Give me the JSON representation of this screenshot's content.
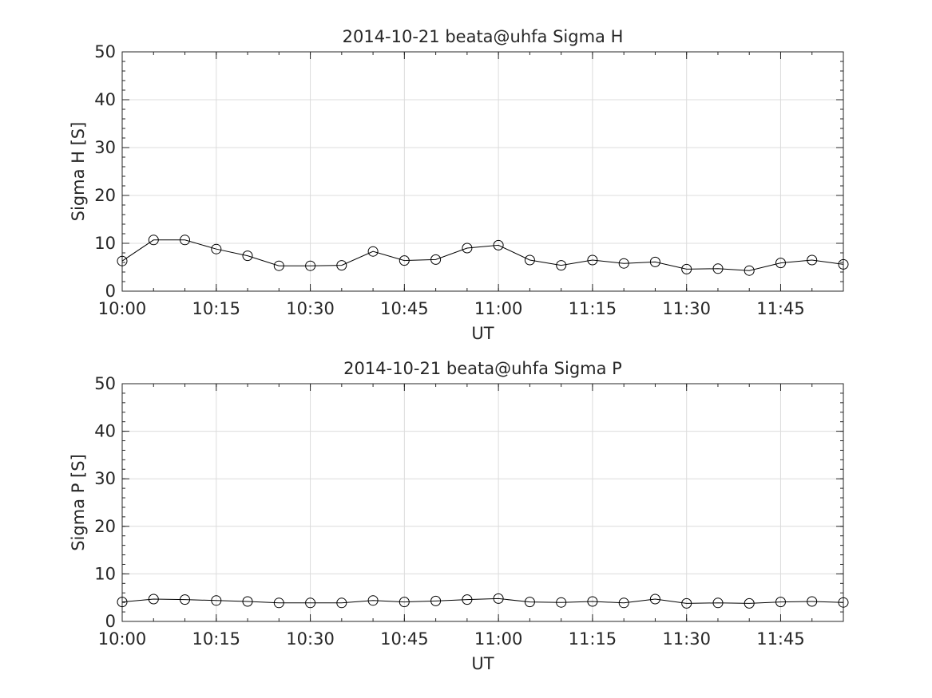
{
  "chart_data": [
    {
      "type": "line",
      "title": "2014-10-21  beata@uhfa Sigma H",
      "xlabel": "UT",
      "ylabel": "Sigma H [S]",
      "xlim": [
        "10:00",
        "11:55"
      ],
      "ylim": [
        0,
        50
      ],
      "xticks": [
        "10:00",
        "10:15",
        "10:30",
        "10:45",
        "11:00",
        "11:15",
        "11:30",
        "11:45"
      ],
      "yticks": [
        0,
        10,
        20,
        30,
        40,
        50
      ],
      "grid": true,
      "marker": "circle",
      "color": "#000000",
      "series": [
        {
          "x": [
            "10:00",
            "10:05",
            "10:10",
            "10:15",
            "10:20",
            "10:25",
            "10:30",
            "10:35",
            "10:40",
            "10:45",
            "10:50",
            "10:55",
            "11:00",
            "11:05",
            "11:10",
            "11:15",
            "11:20",
            "11:25",
            "11:30",
            "11:35",
            "11:40",
            "11:45",
            "11:50",
            "11:55"
          ],
          "values": [
            6.3,
            10.7,
            10.7,
            8.8,
            7.4,
            5.3,
            5.3,
            5.4,
            8.3,
            6.4,
            6.6,
            9.0,
            9.6,
            6.5,
            5.4,
            6.5,
            5.8,
            6.1,
            4.6,
            4.7,
            4.3,
            5.9,
            6.5,
            5.6
          ]
        }
      ]
    },
    {
      "type": "line",
      "title": "2014-10-21  beata@uhfa Sigma P",
      "xlabel": "UT",
      "ylabel": "Sigma P [S]",
      "xlim": [
        "10:00",
        "11:55"
      ],
      "ylim": [
        0,
        50
      ],
      "xticks": [
        "10:00",
        "10:15",
        "10:30",
        "10:45",
        "11:00",
        "11:15",
        "11:30",
        "11:45"
      ],
      "yticks": [
        0,
        10,
        20,
        30,
        40,
        50
      ],
      "grid": true,
      "marker": "circle",
      "color": "#000000",
      "series": [
        {
          "x": [
            "10:00",
            "10:05",
            "10:10",
            "10:15",
            "10:20",
            "10:25",
            "10:30",
            "10:35",
            "10:40",
            "10:45",
            "10:50",
            "10:55",
            "11:00",
            "11:05",
            "11:10",
            "11:15",
            "11:20",
            "11:25",
            "11:30",
            "11:35",
            "11:40",
            "11:45",
            "11:50",
            "11:55"
          ],
          "values": [
            4.1,
            4.7,
            4.6,
            4.4,
            4.2,
            3.9,
            3.9,
            3.9,
            4.4,
            4.1,
            4.3,
            4.6,
            4.8,
            4.1,
            4.0,
            4.2,
            3.9,
            4.7,
            3.8,
            3.9,
            3.8,
            4.1,
            4.2,
            4.0
          ]
        }
      ]
    }
  ]
}
